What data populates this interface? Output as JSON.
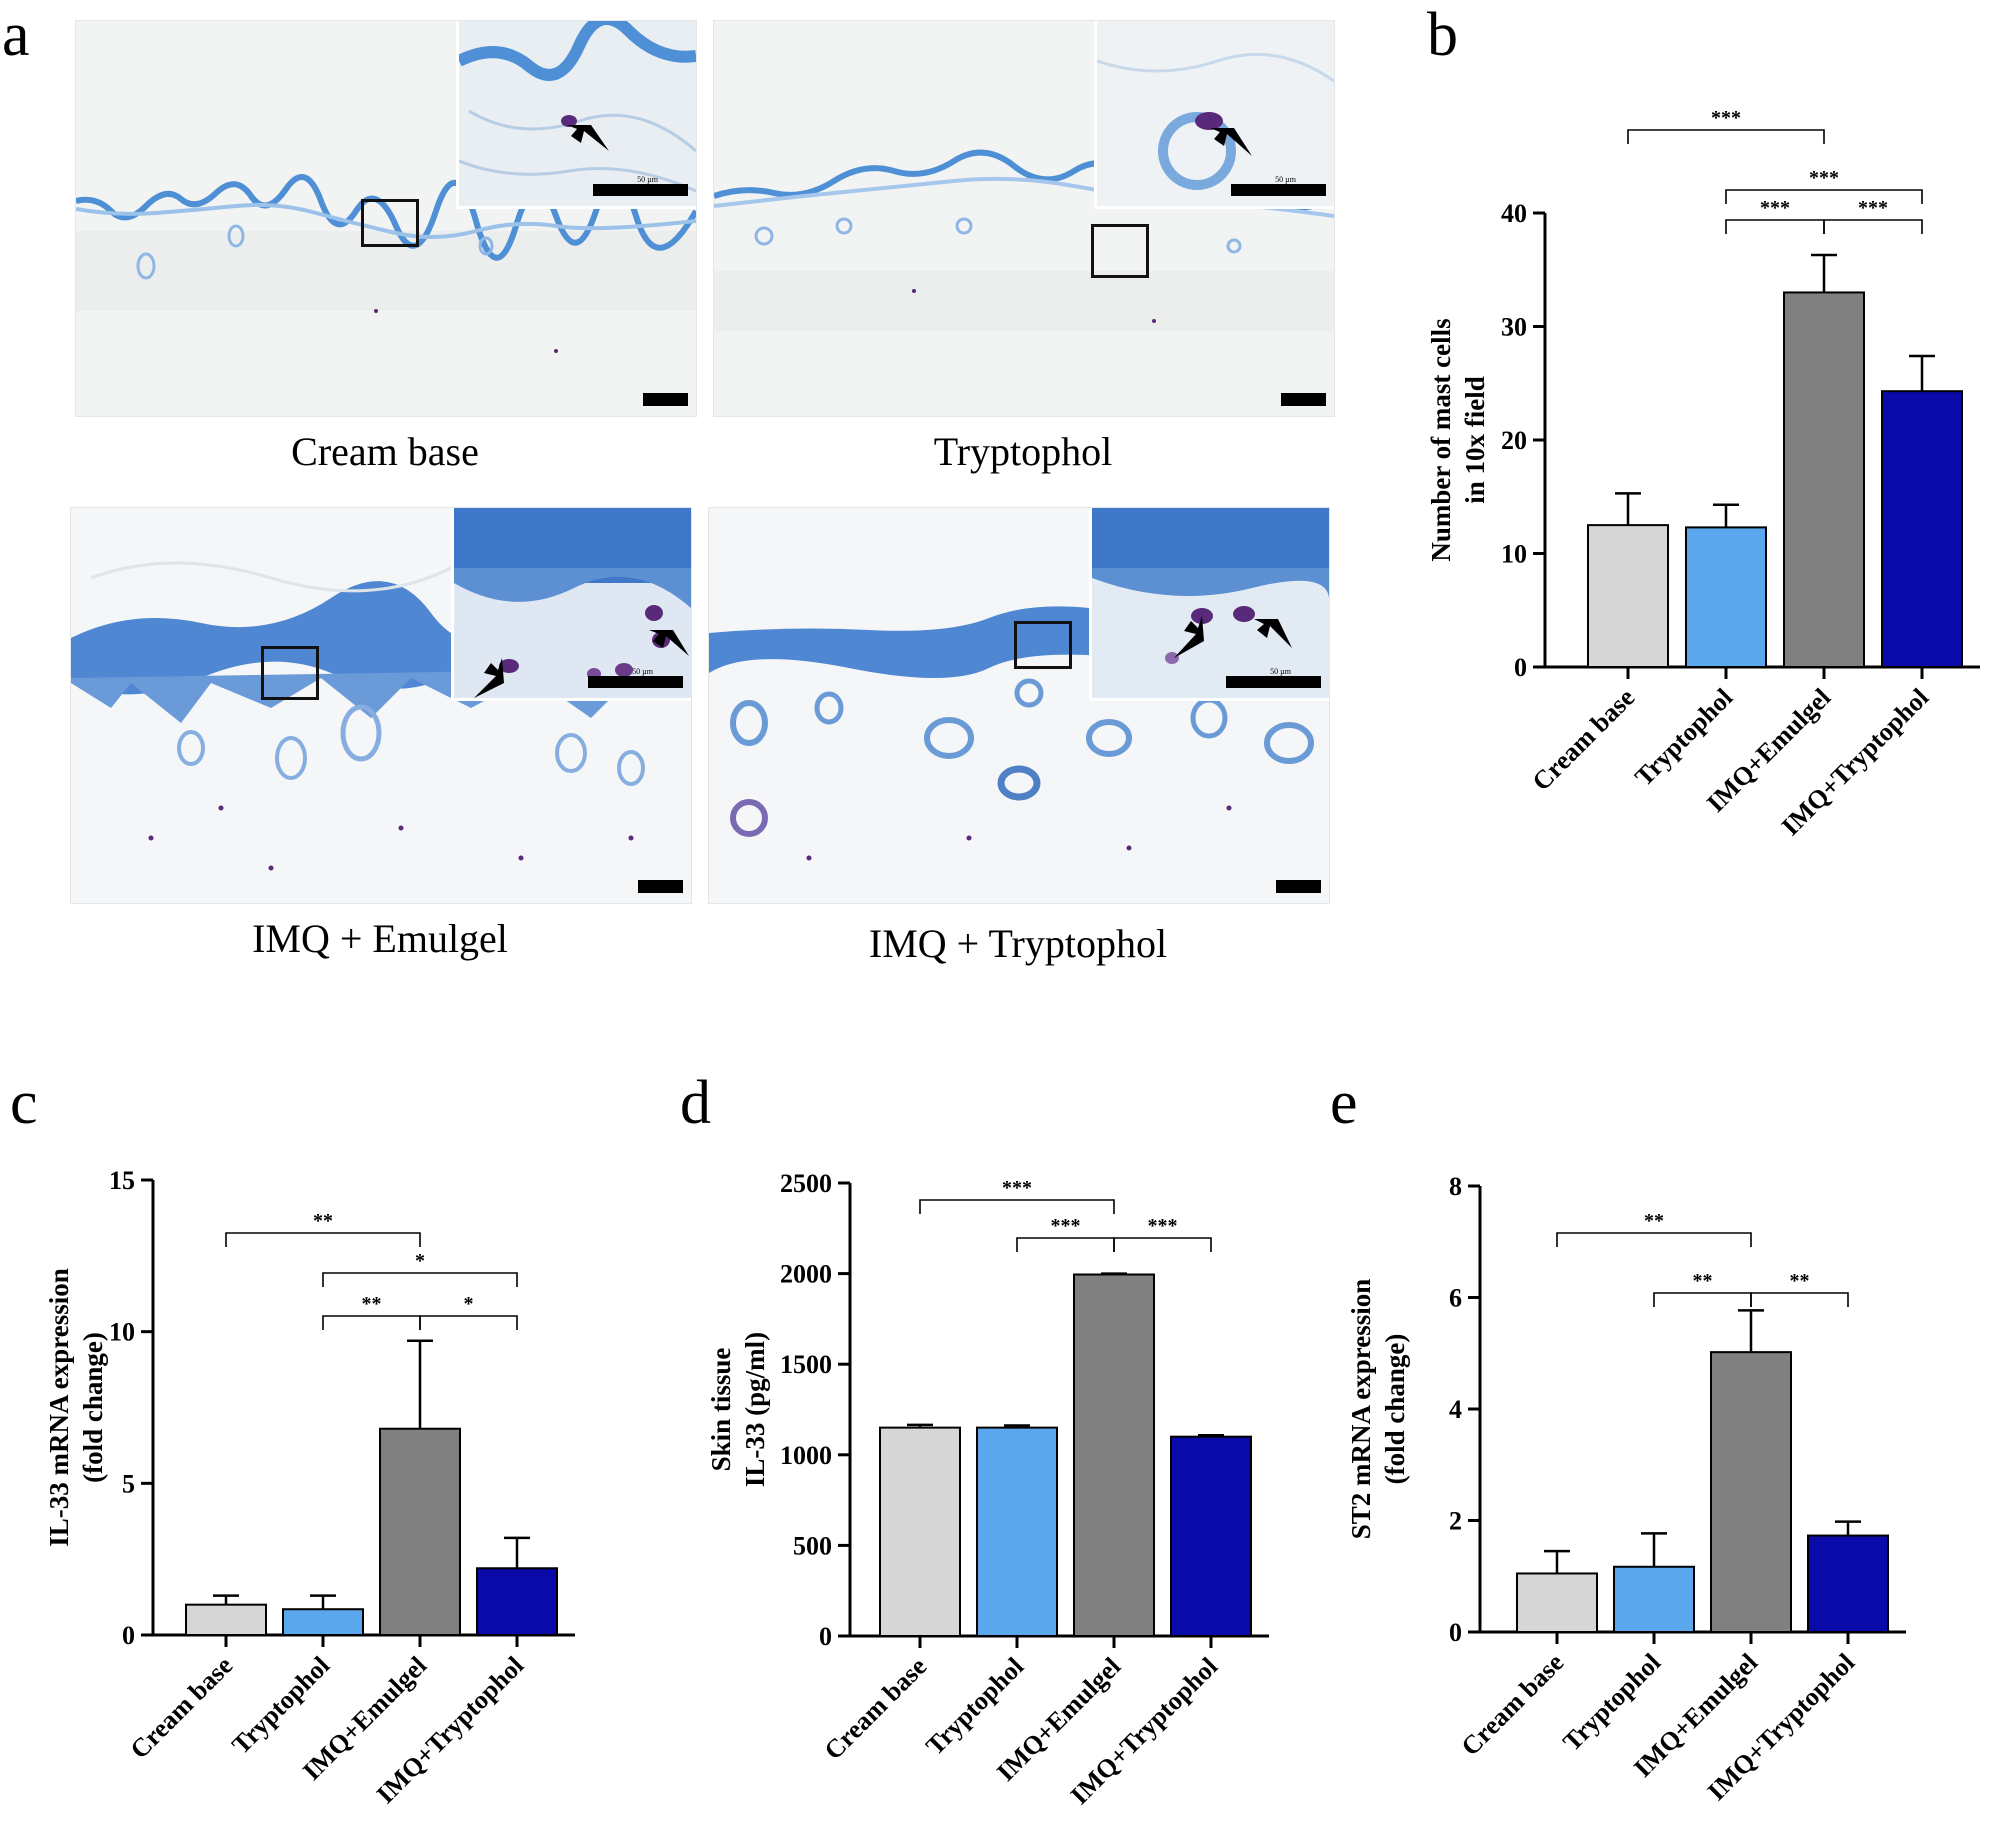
{
  "panel_labels": {
    "a": "a",
    "b": "b",
    "c": "c",
    "d": "d",
    "e": "e"
  },
  "micrographs": [
    {
      "caption": "Cream base",
      "inset_scale": "50 µm",
      "epidermis": "thin"
    },
    {
      "caption": "Tryptophol",
      "inset_scale": "50 µm",
      "epidermis": "thin"
    },
    {
      "caption": "IMQ + Emulgel",
      "inset_scale": "50 µm",
      "epidermis": "thick"
    },
    {
      "caption": "IMQ + Tryptophol",
      "inset_scale": "50 µm",
      "epidermis": "thick"
    }
  ],
  "colors": {
    "cream": "#d6d6d6",
    "tryptophol": "#5aa7ee",
    "imq_emulgel": "#808080",
    "imq_tryptophol": "#0a0aa8",
    "stain_blue": "#3f7fcf",
    "mast_cell": "#5a2a7a",
    "background": "#f1f3f4"
  },
  "chart_data": [
    {
      "id": "b",
      "type": "bar",
      "categories": [
        "Cream base",
        "Tryptophol",
        "IMQ+Emulgel",
        "IMQ+Tryptophol"
      ],
      "values": [
        12.5,
        12.3,
        33.0,
        24.3
      ],
      "errors": [
        2.8,
        2.0,
        3.3,
        3.1
      ],
      "ylabel": [
        "Number of mast cells",
        "in 10x field"
      ],
      "ylim": [
        0,
        40
      ],
      "yticks": [
        0,
        10,
        20,
        30,
        40
      ],
      "significance": [
        {
          "from": 0,
          "to": 2,
          "label": "***"
        },
        {
          "from": 1,
          "to": 3,
          "label": "***"
        },
        {
          "from": 1,
          "to": 2,
          "label": "***"
        },
        {
          "from": 2,
          "to": 3,
          "label": "***"
        }
      ]
    },
    {
      "id": "c",
      "type": "bar",
      "categories": [
        "Cream base",
        "Tryptophol",
        "IMQ+Emulgel",
        "IMQ+Tryptophol"
      ],
      "values": [
        1.0,
        0.85,
        6.8,
        2.2
      ],
      "errors": [
        0.3,
        0.45,
        2.9,
        1.0
      ],
      "ylabel": [
        "IL-33 mRNA expression",
        "(fold change)"
      ],
      "ylim": [
        0,
        15
      ],
      "yticks": [
        0,
        5,
        10,
        15
      ],
      "significance": [
        {
          "from": 0,
          "to": 2,
          "label": "**"
        },
        {
          "from": 1,
          "to": 3,
          "label": "*"
        },
        {
          "from": 1,
          "to": 2,
          "label": "**"
        },
        {
          "from": 2,
          "to": 3,
          "label": "*"
        }
      ]
    },
    {
      "id": "d",
      "type": "bar",
      "categories": [
        "Cream base",
        "Tryptophol",
        "IMQ+Emulgel",
        "IMQ+Tryptophol"
      ],
      "values": [
        1150,
        1150,
        1995,
        1100
      ],
      "errors": [
        15,
        12,
        5,
        8
      ],
      "ylabel": [
        "Skin tissue",
        "IL-33 (pg/ml)"
      ],
      "ylim": [
        0,
        2500
      ],
      "yticks": [
        0,
        500,
        1000,
        1500,
        2000,
        2500
      ],
      "significance": [
        {
          "from": 0,
          "to": 2,
          "label": "***"
        },
        {
          "from": 1,
          "to": 2,
          "label": "***"
        },
        {
          "from": 2,
          "to": 3,
          "label": "***"
        }
      ]
    },
    {
      "id": "e",
      "type": "bar",
      "categories": [
        "Cream base",
        "Tryptophol",
        "IMQ+Emulgel",
        "IMQ+Tryptophol"
      ],
      "values": [
        1.05,
        1.17,
        5.02,
        1.73
      ],
      "errors": [
        0.4,
        0.6,
        0.75,
        0.25
      ],
      "ylabel": [
        "ST2 mRNA expression",
        "(fold change)"
      ],
      "ylim": [
        0,
        8
      ],
      "yticks": [
        0,
        2,
        4,
        6,
        8
      ],
      "significance": [
        {
          "from": 0,
          "to": 2,
          "label": "**"
        },
        {
          "from": 1,
          "to": 2,
          "label": "**"
        },
        {
          "from": 2,
          "to": 3,
          "label": "**"
        }
      ]
    }
  ]
}
